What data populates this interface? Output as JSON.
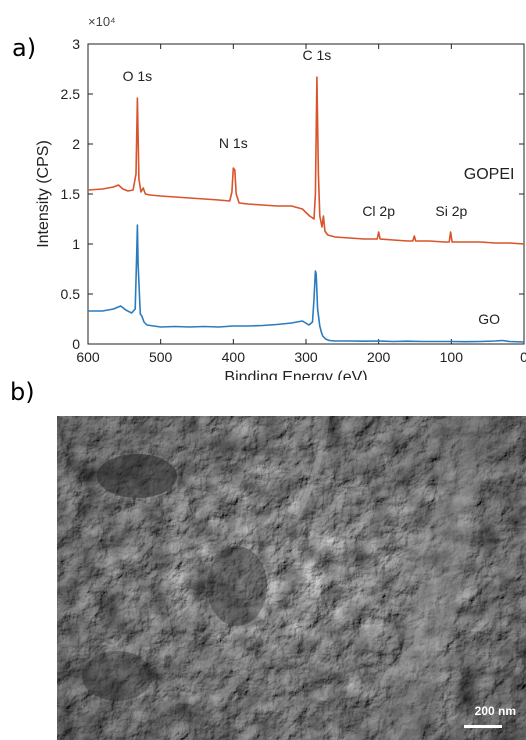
{
  "panels": {
    "a": "a)",
    "b": "b)"
  },
  "chart_data": {
    "type": "line",
    "xlabel": "Binding Energy (eV)",
    "ylabel": "Intensity (CPS)",
    "y_exponent_label": "×10⁴",
    "xlim": [
      600,
      0
    ],
    "ylim": [
      0,
      30000
    ],
    "x_reversed": true,
    "xticks": [
      600,
      500,
      400,
      300,
      200,
      100,
      0
    ],
    "yticks": [
      0,
      5000,
      10000,
      15000,
      20000,
      25000,
      30000
    ],
    "ytick_labels": [
      "0",
      "0.5",
      "1",
      "1.5",
      "2",
      "2.5",
      "3"
    ],
    "grid": false,
    "series": [
      {
        "name": "GOPEI",
        "color": "#d9532b",
        "points": [
          [
            600,
            15400
          ],
          [
            580,
            15500
          ],
          [
            565,
            15700
          ],
          [
            558,
            15900
          ],
          [
            552,
            15500
          ],
          [
            545,
            15300
          ],
          [
            538,
            15400
          ],
          [
            534,
            17000
          ],
          [
            532,
            24600
          ],
          [
            530,
            16500
          ],
          [
            527,
            15200
          ],
          [
            524,
            15600
          ],
          [
            521,
            15000
          ],
          [
            515,
            14900
          ],
          [
            500,
            14800
          ],
          [
            480,
            14700
          ],
          [
            460,
            14600
          ],
          [
            440,
            14500
          ],
          [
            420,
            14400
          ],
          [
            405,
            14300
          ],
          [
            402,
            15200
          ],
          [
            400,
            17600
          ],
          [
            398,
            17400
          ],
          [
            396,
            15000
          ],
          [
            392,
            14100
          ],
          [
            380,
            14000
          ],
          [
            360,
            13900
          ],
          [
            340,
            13800
          ],
          [
            320,
            13800
          ],
          [
            305,
            13500
          ],
          [
            295,
            12800
          ],
          [
            289,
            12500
          ],
          [
            287,
            15000
          ],
          [
            285,
            26700
          ],
          [
            283,
            17000
          ],
          [
            281,
            12800
          ],
          [
            278,
            11700
          ],
          [
            276,
            12800
          ],
          [
            274,
            11300
          ],
          [
            272,
            11100
          ],
          [
            270,
            10900
          ],
          [
            260,
            10700
          ],
          [
            240,
            10600
          ],
          [
            220,
            10500
          ],
          [
            202,
            10500
          ],
          [
            200,
            11200
          ],
          [
            198,
            10500
          ],
          [
            180,
            10400
          ],
          [
            160,
            10300
          ],
          [
            153,
            10300
          ],
          [
            151,
            10800
          ],
          [
            149,
            10300
          ],
          [
            130,
            10300
          ],
          [
            110,
            10200
          ],
          [
            103,
            10200
          ],
          [
            101,
            11200
          ],
          [
            99,
            10200
          ],
          [
            80,
            10200
          ],
          [
            60,
            10200
          ],
          [
            40,
            10100
          ],
          [
            20,
            10100
          ],
          [
            0,
            10000
          ]
        ]
      },
      {
        "name": "GO",
        "color": "#2b7bbf",
        "points": [
          [
            600,
            3300
          ],
          [
            580,
            3300
          ],
          [
            565,
            3500
          ],
          [
            555,
            3800
          ],
          [
            548,
            3400
          ],
          [
            540,
            3100
          ],
          [
            535,
            3500
          ],
          [
            533,
            9000
          ],
          [
            532,
            11900
          ],
          [
            531,
            8000
          ],
          [
            528,
            3000
          ],
          [
            526,
            2800
          ],
          [
            523,
            2200
          ],
          [
            519,
            1900
          ],
          [
            500,
            1700
          ],
          [
            480,
            1750
          ],
          [
            460,
            1700
          ],
          [
            440,
            1750
          ],
          [
            420,
            1700
          ],
          [
            400,
            1800
          ],
          [
            380,
            1800
          ],
          [
            360,
            1850
          ],
          [
            340,
            1950
          ],
          [
            320,
            2100
          ],
          [
            305,
            2300
          ],
          [
            296,
            1900
          ],
          [
            291,
            2200
          ],
          [
            289,
            4500
          ],
          [
            287,
            7300
          ],
          [
            286,
            7000
          ],
          [
            284,
            3500
          ],
          [
            281,
            1800
          ],
          [
            279,
            1200
          ],
          [
            277,
            800
          ],
          [
            273,
            500
          ],
          [
            268,
            350
          ],
          [
            260,
            300
          ],
          [
            240,
            300
          ],
          [
            220,
            280
          ],
          [
            200,
            300
          ],
          [
            180,
            250
          ],
          [
            160,
            280
          ],
          [
            140,
            250
          ],
          [
            120,
            250
          ],
          [
            100,
            250
          ],
          [
            80,
            230
          ],
          [
            60,
            250
          ],
          [
            40,
            300
          ],
          [
            30,
            350
          ],
          [
            20,
            250
          ],
          [
            0,
            200
          ]
        ]
      }
    ],
    "annotations": [
      {
        "text": "O 1s",
        "x": 532,
        "y": 26300
      },
      {
        "text": "N 1s",
        "x": 400,
        "y": 19600
      },
      {
        "text": "C 1s",
        "x": 285,
        "y": 28400
      },
      {
        "text": "GOPEI",
        "x": 48,
        "y": 16500
      },
      {
        "text": "Cl 2p",
        "x": 200,
        "y": 12800
      },
      {
        "text": "Si 2p",
        "x": 100,
        "y": 12800
      },
      {
        "text": "GO",
        "x": 48,
        "y": 2000
      }
    ]
  },
  "sem": {
    "scale_label": "200 nm"
  }
}
